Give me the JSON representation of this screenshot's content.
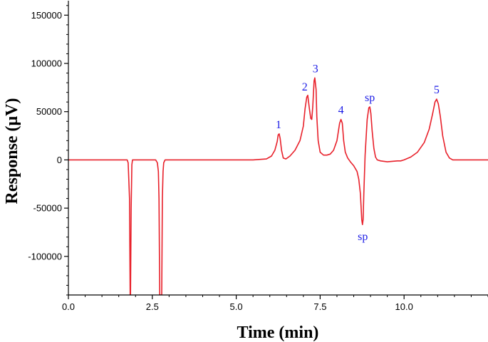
{
  "chart_data": {
    "type": "line",
    "xlabel": "Time (min)",
    "ylabel": "Response (μV)",
    "xlim": [
      0,
      12.5
    ],
    "ylim": [
      -140000,
      165000
    ],
    "xticks": [
      0.0,
      2.5,
      5.0,
      7.5,
      10.0
    ],
    "xtick_labels": [
      "0.0",
      "2.5",
      "5.0",
      "7.5",
      "10.0"
    ],
    "x_minor_step": 0.5,
    "yticks": [
      -100000,
      -50000,
      0,
      50000,
      100000,
      150000
    ],
    "ytick_labels": [
      "-100000",
      "-50000",
      "0",
      "50000",
      "100000",
      "150000"
    ],
    "y_minor_step": 10000,
    "grid": false,
    "line_color": "#e8202a",
    "label_color": "#1a1ae6",
    "series": [
      {
        "x": [
          0.0,
          0.5,
          1.0,
          1.5,
          1.75,
          1.78,
          1.82,
          1.84,
          1.85,
          1.87,
          1.89,
          1.91,
          1.95,
          2.05,
          2.5,
          2.6,
          2.65,
          2.68,
          2.7,
          2.72,
          2.75,
          2.76,
          2.78,
          2.8,
          2.82,
          2.84,
          2.88,
          2.95,
          3.2,
          4.0,
          5.0,
          5.5,
          5.9,
          6.05,
          6.15,
          6.22,
          6.25,
          6.28,
          6.31,
          6.35,
          6.4,
          6.48,
          6.6,
          6.75,
          6.9,
          7.0,
          7.05,
          7.1,
          7.13,
          7.18,
          7.22,
          7.25,
          7.28,
          7.32,
          7.34,
          7.38,
          7.4,
          7.44,
          7.5,
          7.6,
          7.7,
          7.8,
          7.9,
          8.0,
          8.08,
          8.12,
          8.16,
          8.2,
          8.25,
          8.32,
          8.4,
          8.5,
          8.6,
          8.65,
          8.7,
          8.74,
          8.76,
          8.78,
          8.8,
          8.84,
          8.9,
          8.95,
          8.98,
          9.01,
          9.05,
          9.1,
          9.15,
          9.2,
          9.3,
          9.5,
          9.8,
          9.9,
          10.0,
          10.2,
          10.4,
          10.6,
          10.75,
          10.85,
          10.92,
          10.97,
          11.02,
          11.08,
          11.15,
          11.25,
          11.35,
          11.45,
          11.6,
          12.0,
          12.5
        ],
        "y": [
          0,
          0,
          0,
          0,
          0,
          -3000,
          -40000,
          -140000,
          -140000,
          -50000,
          -5000,
          0,
          0,
          0,
          0,
          0,
          -3000,
          -12000,
          -40000,
          -140000,
          -140000,
          -140000,
          -140000,
          -40000,
          -12000,
          -3000,
          0,
          0,
          0,
          0,
          0,
          0,
          1000,
          4000,
          10000,
          19000,
          26000,
          27000,
          22000,
          10000,
          2000,
          1000,
          4000,
          10000,
          20000,
          35000,
          53000,
          65000,
          67000,
          53000,
          43000,
          42000,
          55000,
          82000,
          85000,
          73000,
          45000,
          20000,
          8000,
          5000,
          5000,
          6000,
          10000,
          20000,
          38000,
          42000,
          38000,
          20000,
          8000,
          2000,
          -2000,
          -6000,
          -12000,
          -20000,
          -35000,
          -62000,
          -67000,
          -62000,
          -35000,
          5000,
          42000,
          54000,
          55000,
          48000,
          30000,
          12000,
          3000,
          0,
          -1000,
          -2000,
          -1000,
          -1000,
          0,
          3000,
          8000,
          18000,
          32000,
          48000,
          60000,
          63000,
          58000,
          45000,
          25000,
          8000,
          2000,
          0,
          0,
          0,
          0
        ]
      }
    ],
    "annotations": [
      {
        "text": "1",
        "x": 6.26,
        "y": 27000,
        "placement": "above"
      },
      {
        "text": "2",
        "x": 7.04,
        "y": 66000,
        "placement": "above"
      },
      {
        "text": "3",
        "x": 7.36,
        "y": 85000,
        "placement": "above"
      },
      {
        "text": "4",
        "x": 8.12,
        "y": 42000,
        "placement": "above"
      },
      {
        "text": "sp",
        "x": 8.98,
        "y": 55000,
        "placement": "above"
      },
      {
        "text": "sp",
        "x": 8.77,
        "y": -67000,
        "placement": "below"
      },
      {
        "text": "5",
        "x": 10.97,
        "y": 63000,
        "placement": "above"
      }
    ]
  }
}
